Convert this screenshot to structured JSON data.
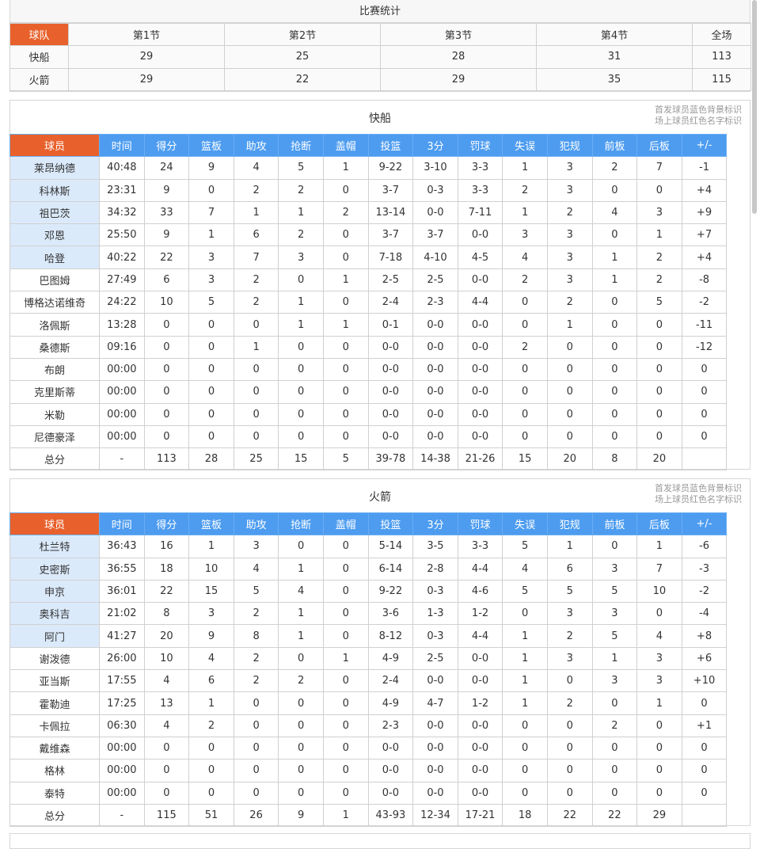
{
  "summary": {
    "title": "比赛统计",
    "headers": [
      "球队",
      "第1节",
      "第2节",
      "第3节",
      "第4节",
      "全场"
    ],
    "rows": [
      [
        "快船",
        "29",
        "25",
        "28",
        "31",
        "113"
      ],
      [
        "火箭",
        "29",
        "22",
        "29",
        "35",
        "115"
      ]
    ]
  },
  "colors": {
    "accent_orange": "#e8612c",
    "header_blue": "#4d9cf0",
    "starter_bg": "#dbeafb"
  },
  "stat_headers": [
    "球员",
    "时间",
    "得分",
    "篮板",
    "助攻",
    "抢断",
    "盖帽",
    "投篮",
    "3分",
    "罚球",
    "失误",
    "犯规",
    "前板",
    "后板",
    "+/-"
  ],
  "notes": [
    "首发球员蓝色背景标识",
    "场上球员红色名字标识"
  ],
  "teams": [
    {
      "name": "快船",
      "starters": 5,
      "players": [
        [
          "莱昂纳德",
          "40:48",
          "24",
          "9",
          "4",
          "5",
          "1",
          "9-22",
          "3-10",
          "3-3",
          "1",
          "3",
          "2",
          "7",
          "-1"
        ],
        [
          "科林斯",
          "23:31",
          "9",
          "0",
          "2",
          "2",
          "0",
          "3-7",
          "0-3",
          "3-3",
          "2",
          "3",
          "0",
          "0",
          "+4"
        ],
        [
          "祖巴茨",
          "34:32",
          "33",
          "7",
          "1",
          "1",
          "2",
          "13-14",
          "0-0",
          "7-11",
          "1",
          "2",
          "4",
          "3",
          "+9"
        ],
        [
          "邓恩",
          "25:50",
          "9",
          "1",
          "6",
          "2",
          "0",
          "3-7",
          "3-7",
          "0-0",
          "3",
          "3",
          "0",
          "1",
          "+7"
        ],
        [
          "哈登",
          "40:22",
          "22",
          "3",
          "7",
          "3",
          "0",
          "7-18",
          "4-10",
          "4-5",
          "4",
          "3",
          "1",
          "2",
          "+4"
        ],
        [
          "巴图姆",
          "27:49",
          "6",
          "3",
          "2",
          "0",
          "1",
          "2-5",
          "2-5",
          "0-0",
          "2",
          "3",
          "1",
          "2",
          "-8"
        ],
        [
          "博格达诺维奇",
          "24:22",
          "10",
          "5",
          "2",
          "1",
          "0",
          "2-4",
          "2-3",
          "4-4",
          "0",
          "2",
          "0",
          "5",
          "-2"
        ],
        [
          "洛佩斯",
          "13:28",
          "0",
          "0",
          "0",
          "1",
          "1",
          "0-1",
          "0-0",
          "0-0",
          "0",
          "1",
          "0",
          "0",
          "-11"
        ],
        [
          "桑德斯",
          "09:16",
          "0",
          "0",
          "1",
          "0",
          "0",
          "0-0",
          "0-0",
          "0-0",
          "2",
          "0",
          "0",
          "0",
          "-12"
        ],
        [
          "布朗",
          "00:00",
          "0",
          "0",
          "0",
          "0",
          "0",
          "0-0",
          "0-0",
          "0-0",
          "0",
          "0",
          "0",
          "0",
          "0"
        ],
        [
          "克里斯蒂",
          "00:00",
          "0",
          "0",
          "0",
          "0",
          "0",
          "0-0",
          "0-0",
          "0-0",
          "0",
          "0",
          "0",
          "0",
          "0"
        ],
        [
          "米勒",
          "00:00",
          "0",
          "0",
          "0",
          "0",
          "0",
          "0-0",
          "0-0",
          "0-0",
          "0",
          "0",
          "0",
          "0",
          "0"
        ],
        [
          "尼德豪泽",
          "00:00",
          "0",
          "0",
          "0",
          "0",
          "0",
          "0-0",
          "0-0",
          "0-0",
          "0",
          "0",
          "0",
          "0",
          "0"
        ]
      ],
      "total": [
        "总分",
        "-",
        "113",
        "28",
        "25",
        "15",
        "5",
        "39-78",
        "14-38",
        "21-26",
        "15",
        "20",
        "8",
        "20",
        ""
      ]
    },
    {
      "name": "火箭",
      "starters": 5,
      "players": [
        [
          "杜兰特",
          "36:43",
          "16",
          "1",
          "3",
          "0",
          "0",
          "5-14",
          "3-5",
          "3-3",
          "5",
          "1",
          "0",
          "1",
          "-6"
        ],
        [
          "史密斯",
          "36:55",
          "18",
          "10",
          "4",
          "1",
          "0",
          "6-14",
          "2-8",
          "4-4",
          "4",
          "6",
          "3",
          "7",
          "-3"
        ],
        [
          "申京",
          "36:01",
          "22",
          "15",
          "5",
          "4",
          "0",
          "9-22",
          "0-3",
          "4-6",
          "5",
          "5",
          "5",
          "10",
          "-2"
        ],
        [
          "奥科吉",
          "21:02",
          "8",
          "3",
          "2",
          "1",
          "0",
          "3-6",
          "1-3",
          "1-2",
          "0",
          "3",
          "3",
          "0",
          "-4"
        ],
        [
          "阿门",
          "41:27",
          "20",
          "9",
          "8",
          "1",
          "0",
          "8-12",
          "0-3",
          "4-4",
          "1",
          "2",
          "5",
          "4",
          "+8"
        ],
        [
          "谢泼德",
          "26:00",
          "10",
          "4",
          "2",
          "0",
          "1",
          "4-9",
          "2-5",
          "0-0",
          "1",
          "3",
          "1",
          "3",
          "+6"
        ],
        [
          "亚当斯",
          "17:55",
          "4",
          "6",
          "2",
          "2",
          "0",
          "2-4",
          "0-0",
          "0-0",
          "1",
          "0",
          "3",
          "3",
          "+10"
        ],
        [
          "霍勒迪",
          "17:25",
          "13",
          "1",
          "0",
          "0",
          "0",
          "4-9",
          "4-7",
          "1-2",
          "1",
          "2",
          "0",
          "1",
          "0"
        ],
        [
          "卡佩拉",
          "06:30",
          "4",
          "2",
          "0",
          "0",
          "0",
          "2-3",
          "0-0",
          "0-0",
          "0",
          "0",
          "2",
          "0",
          "+1"
        ],
        [
          "戴维森",
          "00:00",
          "0",
          "0",
          "0",
          "0",
          "0",
          "0-0",
          "0-0",
          "0-0",
          "0",
          "0",
          "0",
          "0",
          "0"
        ],
        [
          "格林",
          "00:00",
          "0",
          "0",
          "0",
          "0",
          "0",
          "0-0",
          "0-0",
          "0-0",
          "0",
          "0",
          "0",
          "0",
          "0"
        ],
        [
          "泰特",
          "00:00",
          "0",
          "0",
          "0",
          "0",
          "0",
          "0-0",
          "0-0",
          "0-0",
          "0",
          "0",
          "0",
          "0",
          "0"
        ]
      ],
      "total": [
        "总分",
        "-",
        "115",
        "51",
        "26",
        "9",
        "1",
        "43-93",
        "12-34",
        "17-21",
        "18",
        "22",
        "22",
        "29",
        ""
      ]
    }
  ]
}
